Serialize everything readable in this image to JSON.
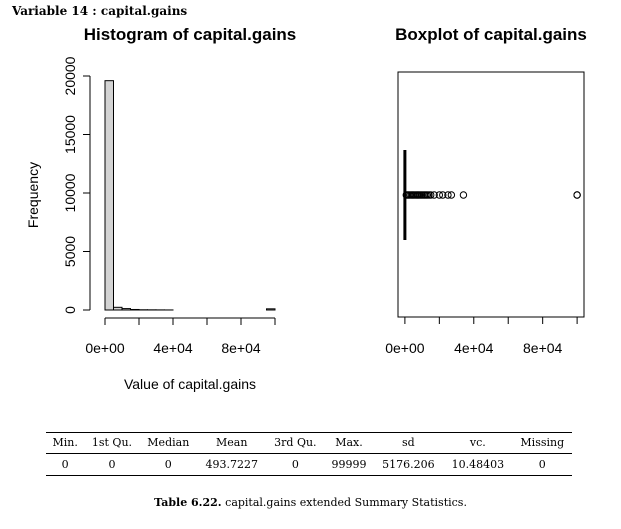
{
  "heading": "Variable 14 :  capital.gains",
  "chart_data": [
    {
      "type": "bar",
      "title": "Histogram of capital.gains",
      "xlabel": "Value of capital.gains",
      "ylabel": "Frequency",
      "bin_edges": [
        0,
        5000,
        10000,
        15000,
        20000,
        25000,
        30000,
        35000,
        40000,
        45000,
        50000,
        55000,
        60000,
        65000,
        70000,
        75000,
        80000,
        85000,
        90000,
        95000,
        100000
      ],
      "values": [
        19600,
        230,
        120,
        45,
        20,
        15,
        10,
        5,
        0,
        0,
        0,
        0,
        0,
        0,
        0,
        0,
        0,
        0,
        0,
        100
      ],
      "xlim": [
        0,
        100000
      ],
      "ylim": [
        0,
        20000
      ],
      "xticks": [
        0,
        20000,
        40000,
        60000,
        80000,
        100000
      ],
      "xtick_labels": [
        "0e+00",
        "4e+04",
        "8e+04"
      ],
      "xtick_label_values": [
        0,
        40000,
        80000
      ],
      "yticks": [
        0,
        5000,
        10000,
        15000,
        20000
      ],
      "ytick_labels": [
        "0",
        "5000",
        "10000",
        "15000",
        "20000"
      ],
      "bar_color": "#d3d3d3"
    },
    {
      "type": "boxplot",
      "title": "Boxplot of capital.gains",
      "min": 0,
      "q1": 0,
      "median": 0,
      "q3": 0,
      "whisker_high": 0,
      "outliers": [
        800,
        1500,
        2200,
        3000,
        3800,
        4500,
        5200,
        6000,
        6800,
        7500,
        8200,
        9000,
        9800,
        10600,
        11400,
        12200,
        13000,
        14000,
        15000,
        17000,
        20000,
        22000,
        25000,
        27000,
        34000,
        99999,
        99999
      ],
      "xlim": [
        -4000,
        104000
      ],
      "xticks": [
        0,
        20000,
        40000,
        60000,
        80000,
        100000
      ],
      "xtick_labels": [
        "0e+00",
        "4e+04",
        "8e+04"
      ],
      "xtick_label_values": [
        0,
        40000,
        80000
      ]
    }
  ],
  "stats": {
    "headers": [
      "Min.",
      "1st Qu.",
      "Median",
      "Mean",
      "3rd Qu.",
      "Max.",
      "sd",
      "vc.",
      "Missing"
    ],
    "values": [
      "0",
      "0",
      "0",
      "493.7227",
      "0",
      "99999",
      "5176.206",
      "10.48403",
      "0"
    ]
  },
  "caption": {
    "label": "Table 6.22.",
    "text": "capital.gains extended Summary Statistics."
  }
}
